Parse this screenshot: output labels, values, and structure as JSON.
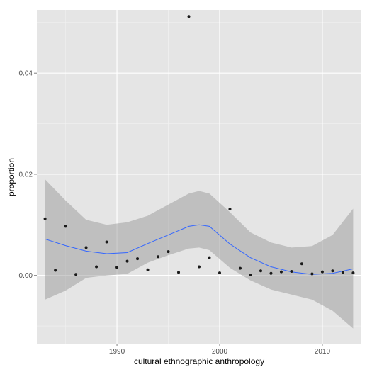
{
  "chart_data": {
    "type": "scatter",
    "xlabel": "cultural ethnographic anthropology",
    "ylabel": "proportion",
    "xlim": [
      1982.2,
      2013.8
    ],
    "ylim": [
      -0.0135,
      0.0525
    ],
    "x_ticks": [
      1990,
      2000,
      2010
    ],
    "x_tick_labels": [
      "1990",
      "2000",
      "2010"
    ],
    "y_ticks": [
      0.0,
      0.02,
      0.04
    ],
    "y_tick_labels": [
      "0.00",
      "0.02",
      "0.04"
    ],
    "grid": true,
    "legend": "none",
    "colors": {
      "panel": "#e5e5e5",
      "grid_major": "#ffffff",
      "grid_minor": "#f2f2f2",
      "points": "#1a1a1a",
      "smooth_line": "#3366ff",
      "ribbon": "#999999"
    },
    "points": [
      {
        "x": 1983,
        "y": 0.0112
      },
      {
        "x": 1984,
        "y": 0.001
      },
      {
        "x": 1985,
        "y": 0.0097
      },
      {
        "x": 1986,
        "y": 0.0002
      },
      {
        "x": 1987,
        "y": 0.0055
      },
      {
        "x": 1988,
        "y": 0.0017
      },
      {
        "x": 1989,
        "y": 0.0066
      },
      {
        "x": 1990,
        "y": 0.0016
      },
      {
        "x": 1991,
        "y": 0.0028
      },
      {
        "x": 1992,
        "y": 0.0033
      },
      {
        "x": 1993,
        "y": 0.0011
      },
      {
        "x": 1994,
        "y": 0.0037
      },
      {
        "x": 1995,
        "y": 0.0047
      },
      {
        "x": 1996,
        "y": 0.0006
      },
      {
        "x": 1997,
        "y": 0.0512
      },
      {
        "x": 1998,
        "y": 0.0017
      },
      {
        "x": 1999,
        "y": 0.0035
      },
      {
        "x": 2000,
        "y": 0.0005
      },
      {
        "x": 2001,
        "y": 0.0131
      },
      {
        "x": 2002,
        "y": 0.0014
      },
      {
        "x": 2003,
        "y": 0.0001
      },
      {
        "x": 2004,
        "y": 0.0009
      },
      {
        "x": 2005,
        "y": 0.0004
      },
      {
        "x": 2006,
        "y": 0.0007
      },
      {
        "x": 2007,
        "y": 0.0008
      },
      {
        "x": 2008,
        "y": 0.0023
      },
      {
        "x": 2009,
        "y": 0.0003
      },
      {
        "x": 2010,
        "y": 0.0007
      },
      {
        "x": 2011,
        "y": 0.0009
      },
      {
        "x": 2012,
        "y": 0.0006
      },
      {
        "x": 2013,
        "y": 0.0005
      }
    ],
    "smooth": {
      "x": [
        1983,
        1985,
        1987,
        1989,
        1991,
        1993,
        1995,
        1997,
        1998,
        1999,
        2001,
        2003,
        2005,
        2007,
        2009,
        2011,
        2013
      ],
      "y": [
        0.0072,
        0.0059,
        0.0048,
        0.0043,
        0.0045,
        0.0063,
        0.008,
        0.0097,
        0.01,
        0.0097,
        0.0062,
        0.0035,
        0.0017,
        0.0007,
        0.0002,
        0.0004,
        0.0013
      ],
      "lower": [
        -0.0048,
        -0.003,
        -0.0005,
        0.0,
        0.0003,
        0.0025,
        0.004,
        0.0053,
        0.0055,
        0.005,
        0.0015,
        -0.001,
        -0.0028,
        -0.0038,
        -0.0048,
        -0.007,
        -0.0105
      ],
      "upper": [
        0.019,
        0.0148,
        0.011,
        0.01,
        0.0105,
        0.0118,
        0.014,
        0.0162,
        0.0167,
        0.0162,
        0.0125,
        0.0085,
        0.0065,
        0.0055,
        0.0058,
        0.008,
        0.0132
      ]
    }
  }
}
